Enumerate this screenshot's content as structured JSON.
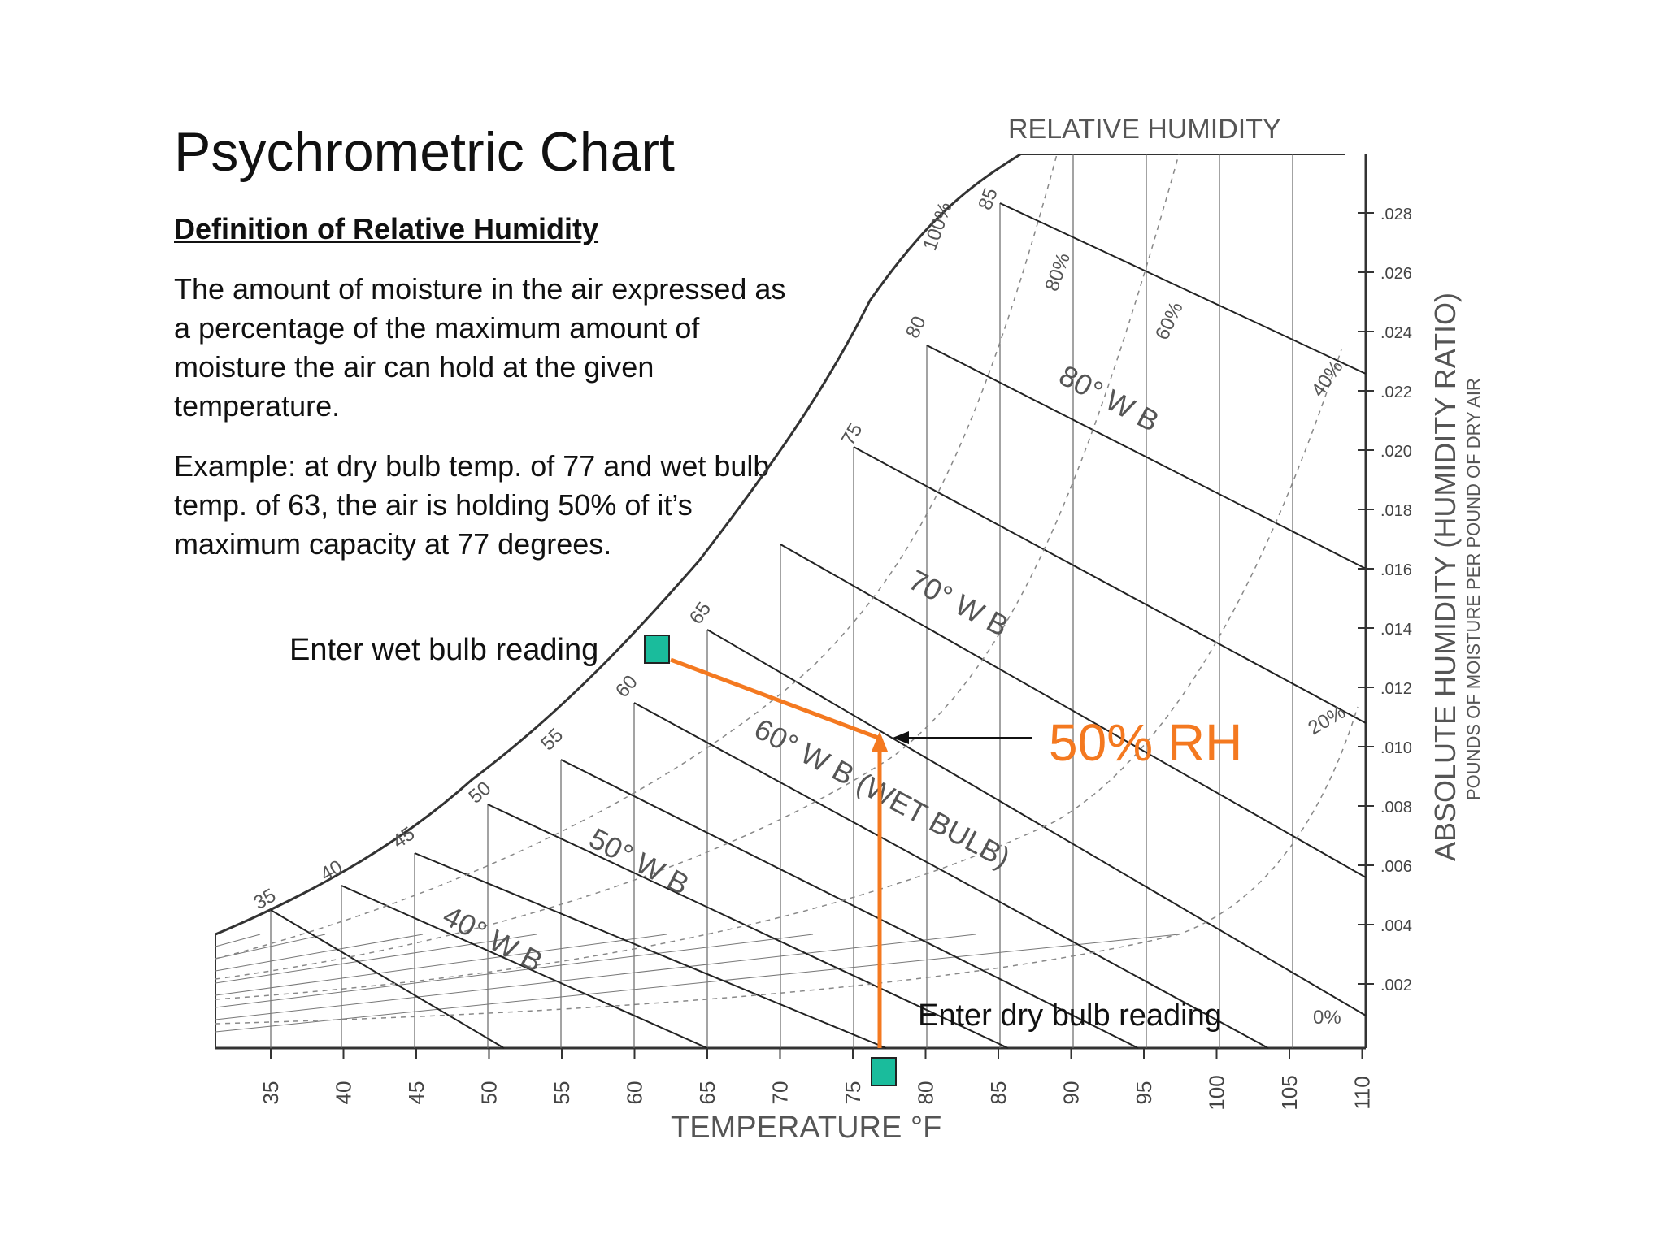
{
  "slide": {
    "title": "Psychrometric Chart",
    "heading": "Definition of Relative Humidity",
    "definition": "The amount of moisture in the air expressed as a percentage of the maximum amount of moisture the air can hold at the given temperature.",
    "example": "Example: at dry bulb temp. of 77 and wet bulb temp. of 63, the air is holding 50% of it’s maximum capacity at 77 degrees."
  },
  "chart": {
    "top_label": "RELATIVE HUMIDITY",
    "x_axis_label": "TEMPERATURE °F",
    "y_axis_label_main": "ABSOLUTE HUMIDITY  (HUMIDITY RATIO)",
    "y_axis_label_sub": "POUNDS OF MOISTURE PER POUND OF DRY AIR",
    "x_ticks": [
      "35",
      "40",
      "45",
      "50",
      "55",
      "60",
      "65",
      "70",
      "75",
      "80",
      "85",
      "90",
      "95",
      "100",
      "105",
      "110"
    ],
    "y_ticks": [
      ".028",
      ".026",
      ".024",
      ".022",
      ".020",
      ".018",
      ".016",
      ".014",
      ".012",
      ".010",
      ".008",
      ".006",
      ".004",
      ".002"
    ],
    "saturation_labels": [
      "35",
      "40",
      "45",
      "50",
      "55",
      "60",
      "65",
      "75",
      "80",
      "85"
    ],
    "saturation_pct_label": "100%",
    "rh_labels": [
      "80%",
      "60%",
      "40%",
      "20%",
      "0%"
    ],
    "wb_labels": [
      "80° W B",
      "70° W B",
      "60° W B (WET BULB)",
      "50° W B",
      "40° W B"
    ],
    "accent_color": "#f47920",
    "marker_color": "#1abc9c"
  },
  "annotations": {
    "wet_bulb": "Enter wet bulb reading",
    "dry_bulb": "Enter dry bulb reading",
    "result": "50% RH"
  }
}
